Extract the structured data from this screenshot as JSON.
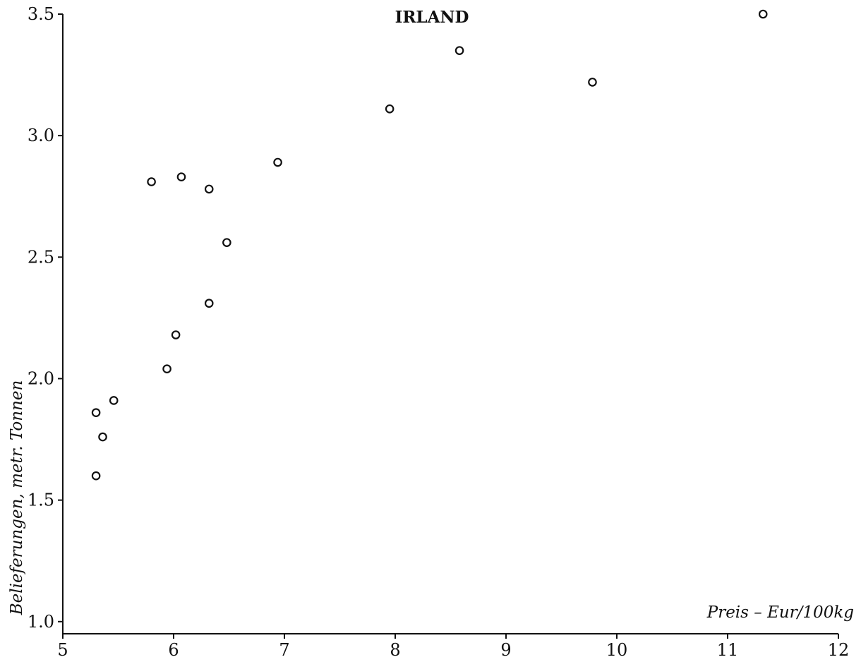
{
  "chart_data": {
    "type": "scatter",
    "title": "IRLAND",
    "xlabel": "Preis – Eur/100kg",
    "ylabel": "Belieferungen, metr. Tonnen",
    "xlim": [
      5,
      12
    ],
    "ylim": [
      0.95,
      3.5
    ],
    "xticks": [
      5,
      6,
      7,
      8,
      9,
      10,
      11,
      12
    ],
    "xtick_labels": [
      "5",
      "6",
      "7",
      "8",
      "9",
      "10",
      "11",
      "12"
    ],
    "yticks": [
      1.0,
      1.5,
      2.0,
      2.5,
      3.0,
      3.5
    ],
    "ytick_labels": [
      "1.0",
      "1.5",
      "2.0",
      "2.5",
      "3.0",
      "3.5"
    ],
    "grid": false,
    "legend": "none",
    "marker": "open-circle",
    "series": [
      {
        "points": [
          {
            "x": 5.3,
            "y": 1.86
          },
          {
            "x": 5.36,
            "y": 1.76
          },
          {
            "x": 5.3,
            "y": 1.6
          },
          {
            "x": 5.46,
            "y": 1.91
          },
          {
            "x": 5.8,
            "y": 2.81
          },
          {
            "x": 5.94,
            "y": 2.04
          },
          {
            "x": 6.02,
            "y": 2.18
          },
          {
            "x": 6.07,
            "y": 2.83
          },
          {
            "x": 6.32,
            "y": 2.78
          },
          {
            "x": 6.32,
            "y": 2.31
          },
          {
            "x": 6.48,
            "y": 2.56
          },
          {
            "x": 6.94,
            "y": 2.89
          },
          {
            "x": 7.95,
            "y": 3.11
          },
          {
            "x": 8.58,
            "y": 3.35
          },
          {
            "x": 9.78,
            "y": 3.22
          },
          {
            "x": 11.32,
            "y": 3.5
          }
        ]
      }
    ]
  }
}
